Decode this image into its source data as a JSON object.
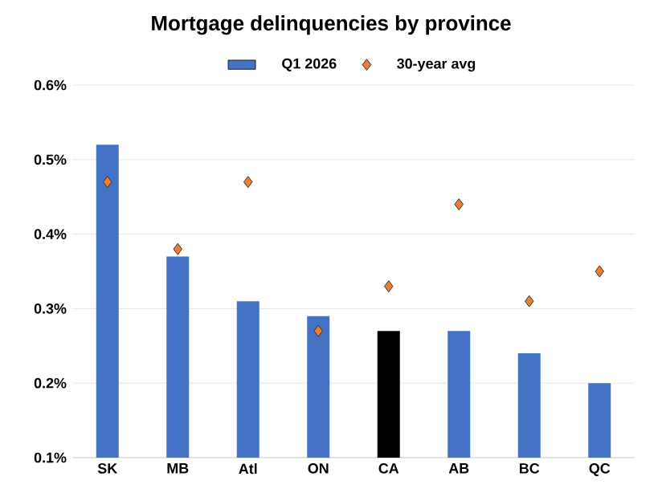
{
  "chart_data": {
    "type": "bar",
    "title": "Mortgage delinquencies by province",
    "categories": [
      "SK",
      "MB",
      "Atl",
      "ON",
      "CA",
      "AB",
      "BC",
      "QC"
    ],
    "series": [
      {
        "name": "Q1 2026",
        "color": "#4472c4",
        "colors": [
          "#4472c4",
          "#4472c4",
          "#4472c4",
          "#4472c4",
          "#000000",
          "#4472c4",
          "#4472c4",
          "#4472c4"
        ],
        "values": [
          0.52,
          0.37,
          0.31,
          0.29,
          0.27,
          0.27,
          0.24,
          0.2
        ]
      },
      {
        "name": "30-year avg",
        "type": "scatter",
        "color": "#ed7d31",
        "marker": "diamond",
        "values": [
          0.47,
          0.38,
          0.47,
          0.27,
          0.33,
          0.44,
          0.31,
          0.35
        ]
      }
    ],
    "ylim": [
      0.1,
      0.6
    ],
    "yticks": [
      {
        "value": 0.1,
        "label": "0.1%"
      },
      {
        "value": 0.2,
        "label": "0.2%"
      },
      {
        "value": 0.3,
        "label": "0.3%"
      },
      {
        "value": 0.4,
        "label": "0.4%"
      },
      {
        "value": 0.5,
        "label": "0.5%"
      },
      {
        "value": 0.6,
        "label": "0.6%"
      }
    ],
    "grid": "y",
    "legend": "top"
  }
}
